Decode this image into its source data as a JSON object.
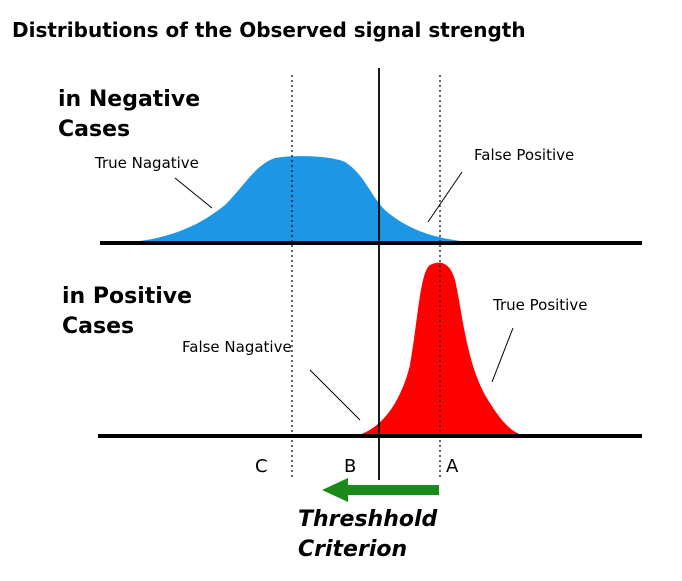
{
  "title": "Distributions of the Observed signal strength",
  "negative_label": [
    "in Negative",
    "Cases"
  ],
  "positive_label": [
    "in Positive",
    "Cases"
  ],
  "annotations": {
    "true_negative": "True Nagative",
    "false_positive": "False Positive",
    "true_positive": "True Positive",
    "false_negative": "False Nagative"
  },
  "markers": {
    "c": "C",
    "b": "B",
    "a": "A"
  },
  "criterion_label": [
    "Threshhold",
    "Criterion"
  ],
  "colors": {
    "negative_curve": "#1e96e6",
    "positive_curve": "#ff0000",
    "arrow": "#1a8a1a",
    "axis": "#000000"
  }
}
